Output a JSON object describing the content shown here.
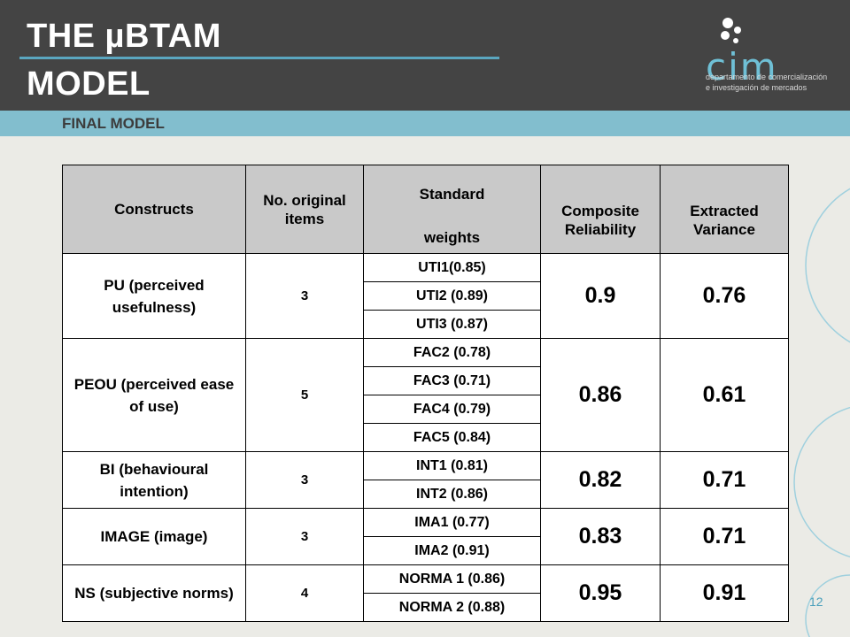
{
  "header": {
    "title_line1": "THE µBTAM",
    "title_line2": "MODEL",
    "subtitle": "FINAL MODEL"
  },
  "logo": {
    "text": "cim",
    "line1": "departamento de comercialización",
    "line2": "e investigación de mercados"
  },
  "colors": {
    "header_bg": "#444444",
    "accent_band": "#82bece",
    "accent_line": "#5aa6bf",
    "table_header_bg": "#c9c9c9",
    "slide_bg": "#ebebe6"
  },
  "table": {
    "headers": {
      "constructs": "Constructs",
      "items": "No. original items",
      "weights_top": "Standard",
      "weights_bottom": "weights",
      "composite": "Composite Reliability",
      "extracted": "Extracted Variance"
    },
    "rows": [
      {
        "construct": "PU (perceived usefulness)",
        "items": "3",
        "weights": [
          "UTI1(0.85)",
          "UTI2 (0.89)",
          "UTI3 (0.87)"
        ],
        "composite": "0.9",
        "extracted": "0.76"
      },
      {
        "construct": "PEOU (perceived ease of use)",
        "items": "5",
        "weights": [
          "FAC2 (0.78)",
          "FAC3 (0.71)",
          "FAC4 (0.79)",
          "FAC5 (0.84)"
        ],
        "composite": "0.86",
        "extracted": "0.61"
      },
      {
        "construct": "BI (behavioural intention)",
        "items": "3",
        "weights": [
          "INT1 (0.81)",
          "INT2 (0.86)"
        ],
        "composite": "0.82",
        "extracted": "0.71"
      },
      {
        "construct": "IMAGE (image)",
        "items": "3",
        "weights": [
          "IMA1 (0.77)",
          "IMA2 (0.91)"
        ],
        "composite": "0.83",
        "extracted": "0.71"
      },
      {
        "construct": "NS (subjective norms)",
        "items": "4",
        "weights": [
          "NORMA 1 (0.86)",
          "NORMA 2 (0.88)"
        ],
        "composite": "0.95",
        "extracted": "0.91"
      }
    ]
  },
  "page_number": "12"
}
